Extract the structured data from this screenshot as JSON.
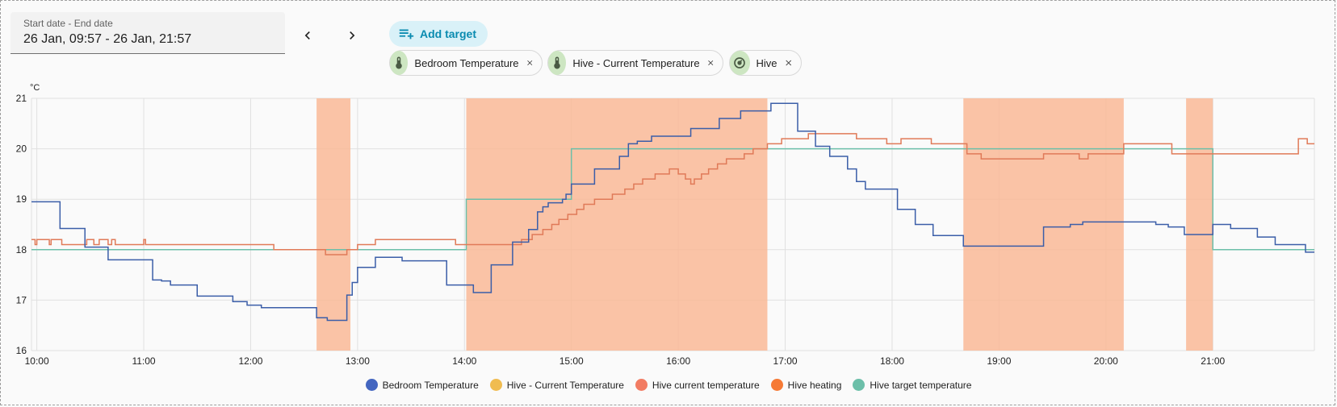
{
  "date_range": {
    "label": "Start date - End date",
    "value": "26 Jan, 09:57 - 26 Jan, 21:57"
  },
  "nav": {
    "prev_icon": "chevron-left-icon",
    "next_icon": "chevron-right-icon"
  },
  "add_target": {
    "label": "Add target",
    "icon": "playlist-plus-icon"
  },
  "targets": [
    {
      "label": "Bedroom Temperature",
      "icon": "thermometer-icon"
    },
    {
      "label": "Hive - Current Temperature",
      "icon": "thermometer-icon"
    },
    {
      "label": "Hive",
      "icon": "thermostat-icon"
    }
  ],
  "colors": {
    "accent": "#0a8bb0",
    "chip_icon_bg": "#cde6c2"
  },
  "chart_data": {
    "type": "line",
    "unit": "°C",
    "xlim": [
      "09:57",
      "21:57"
    ],
    "ylim": [
      16,
      21
    ],
    "yticks": [
      "16",
      "17",
      "18",
      "19",
      "20",
      "21"
    ],
    "xticks": [
      "10:00",
      "11:00",
      "12:00",
      "13:00",
      "14:00",
      "15:00",
      "16:00",
      "17:00",
      "18:00",
      "19:00",
      "20:00",
      "21:00"
    ],
    "grid": true,
    "legend_position": "bottom",
    "series": [
      {
        "name": "Bedroom Temperature",
        "color": "#4466c0",
        "line_color": "#3b5ea8",
        "kind": "step",
        "points": [
          [
            "09:57",
            18.95
          ],
          [
            "10:13",
            18.42
          ],
          [
            "10:27",
            18.05
          ],
          [
            "10:40",
            17.8
          ],
          [
            "11:05",
            17.4
          ],
          [
            "11:10",
            17.38
          ],
          [
            "11:15",
            17.3
          ],
          [
            "11:30",
            17.08
          ],
          [
            "11:50",
            16.97
          ],
          [
            "11:58",
            16.9
          ],
          [
            "12:06",
            16.85
          ],
          [
            "12:37",
            16.65
          ],
          [
            "12:43",
            16.6
          ],
          [
            "12:54",
            17.1
          ],
          [
            "12:57",
            17.35
          ],
          [
            "13:00",
            17.65
          ],
          [
            "13:10",
            17.85
          ],
          [
            "13:25",
            17.78
          ],
          [
            "13:50",
            17.3
          ],
          [
            "14:05",
            17.15
          ],
          [
            "14:15",
            17.7
          ],
          [
            "14:27",
            18.15
          ],
          [
            "14:36",
            18.4
          ],
          [
            "14:41",
            18.75
          ],
          [
            "14:44",
            18.85
          ],
          [
            "14:47",
            18.93
          ],
          [
            "14:55",
            19.0
          ],
          [
            "14:57",
            19.1
          ],
          [
            "15:00",
            19.3
          ],
          [
            "15:13",
            19.6
          ],
          [
            "15:27",
            19.85
          ],
          [
            "15:32",
            20.1
          ],
          [
            "15:37",
            20.15
          ],
          [
            "15:45",
            20.25
          ],
          [
            "16:07",
            20.4
          ],
          [
            "16:23",
            20.6
          ],
          [
            "16:35",
            20.75
          ],
          [
            "16:52",
            20.9
          ],
          [
            "17:07",
            20.35
          ],
          [
            "17:17",
            20.05
          ],
          [
            "17:25",
            19.85
          ],
          [
            "17:35",
            19.6
          ],
          [
            "17:40",
            19.35
          ],
          [
            "17:45",
            19.2
          ],
          [
            "18:03",
            18.8
          ],
          [
            "18:13",
            18.5
          ],
          [
            "18:23",
            18.28
          ],
          [
            "18:40",
            18.07
          ],
          [
            "19:25",
            18.45
          ],
          [
            "19:40",
            18.5
          ],
          [
            "19:47",
            18.55
          ],
          [
            "20:28",
            18.5
          ],
          [
            "20:35",
            18.45
          ],
          [
            "20:44",
            18.3
          ],
          [
            "21:00",
            18.5
          ],
          [
            "21:10",
            18.42
          ],
          [
            "21:25",
            18.25
          ],
          [
            "21:35",
            18.1
          ],
          [
            "21:52",
            17.95
          ],
          [
            "21:57",
            17.95
          ]
        ]
      },
      {
        "name": "Hive - Current Temperature",
        "color": "#f0bc50",
        "line_color": "#f0bc50",
        "kind": "step",
        "points": []
      },
      {
        "name": "Hive current temperature",
        "color": "#f27c63",
        "line_color": "#e07a58",
        "kind": "step",
        "points": [
          [
            "09:57",
            18.2
          ],
          [
            "09:59",
            18.1
          ],
          [
            "10:00",
            18.2
          ],
          [
            "10:07",
            18.1
          ],
          [
            "10:08",
            18.2
          ],
          [
            "10:14",
            18.1
          ],
          [
            "10:28",
            18.2
          ],
          [
            "10:32",
            18.1
          ],
          [
            "10:35",
            18.2
          ],
          [
            "10:40",
            18.1
          ],
          [
            "10:42",
            18.2
          ],
          [
            "10:44",
            18.1
          ],
          [
            "11:00",
            18.2
          ],
          [
            "11:01",
            18.1
          ],
          [
            "12:13",
            18.0
          ],
          [
            "12:42",
            17.9
          ],
          [
            "12:54",
            18.0
          ],
          [
            "13:00",
            18.1
          ],
          [
            "13:10",
            18.2
          ],
          [
            "13:55",
            18.1
          ],
          [
            "14:32",
            18.2
          ],
          [
            "14:38",
            18.3
          ],
          [
            "14:44",
            18.4
          ],
          [
            "14:49",
            18.5
          ],
          [
            "14:53",
            18.6
          ],
          [
            "14:58",
            18.7
          ],
          [
            "15:03",
            18.8
          ],
          [
            "15:07",
            18.9
          ],
          [
            "15:13",
            19.0
          ],
          [
            "15:23",
            19.1
          ],
          [
            "15:30",
            19.2
          ],
          [
            "15:35",
            19.3
          ],
          [
            "15:40",
            19.4
          ],
          [
            "15:47",
            19.5
          ],
          [
            "15:55",
            19.6
          ],
          [
            "16:00",
            19.5
          ],
          [
            "16:04",
            19.4
          ],
          [
            "16:07",
            19.3
          ],
          [
            "16:09",
            19.4
          ],
          [
            "16:13",
            19.5
          ],
          [
            "16:17",
            19.6
          ],
          [
            "16:22",
            19.7
          ],
          [
            "16:27",
            19.8
          ],
          [
            "16:37",
            19.9
          ],
          [
            "16:42",
            20.0
          ],
          [
            "16:50",
            20.1
          ],
          [
            "16:58",
            20.2
          ],
          [
            "17:13",
            20.3
          ],
          [
            "17:40",
            20.2
          ],
          [
            "17:57",
            20.1
          ],
          [
            "18:05",
            20.2
          ],
          [
            "18:22",
            20.1
          ],
          [
            "18:42",
            19.9
          ],
          [
            "18:50",
            19.8
          ],
          [
            "19:25",
            19.9
          ],
          [
            "19:45",
            19.8
          ],
          [
            "19:50",
            19.9
          ],
          [
            "20:10",
            20.1
          ],
          [
            "20:37",
            19.9
          ],
          [
            "21:48",
            20.2
          ],
          [
            "21:53",
            20.1
          ],
          [
            "21:57",
            20.1
          ]
        ]
      },
      {
        "name": "Hive heating",
        "color": "#f67a35",
        "fill_color": "#f9b896",
        "kind": "band",
        "intervals": [
          [
            "12:37",
            "12:56"
          ],
          [
            "14:01",
            "16:50"
          ],
          [
            "18:40",
            "20:10"
          ],
          [
            "20:45",
            "21:00"
          ]
        ]
      },
      {
        "name": "Hive target temperature",
        "color": "#6cbfa9",
        "line_color": "#6cbfa9",
        "kind": "step",
        "points": [
          [
            "09:57",
            18.0
          ],
          [
            "14:01",
            19.0
          ],
          [
            "15:00",
            20.0
          ],
          [
            "21:00",
            18.0
          ],
          [
            "21:57",
            18.0
          ]
        ]
      }
    ]
  }
}
